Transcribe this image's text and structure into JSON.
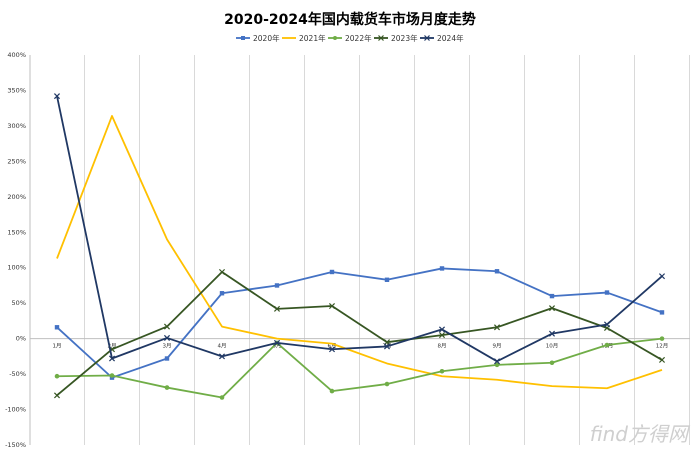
{
  "chart_data": {
    "type": "line",
    "title": "2020-2024年国内载货车市场月度走势",
    "categories": [
      "1月",
      "2月",
      "3月",
      "4月",
      "5月",
      "6月",
      "7月",
      "8月",
      "9月",
      "10月",
      "11月",
      "12月"
    ],
    "y_ticks": [
      "400%",
      "350%",
      "300%",
      "250%",
      "200%",
      "150%",
      "100%",
      "50%",
      "0%",
      "-50%",
      "-100%",
      "-150%"
    ],
    "ylim": [
      -150,
      400
    ],
    "y_unit": "%",
    "grid": "vertical",
    "legend_position": "top",
    "series": [
      {
        "name": "2020年",
        "color": "#4472C4",
        "marker": "square",
        "values": [
          16,
          -55,
          -28,
          64,
          75,
          94,
          83,
          99,
          95,
          60,
          65,
          37
        ]
      },
      {
        "name": "2021年",
        "color": "#FFC000",
        "marker": "none",
        "values": [
          113,
          314,
          140,
          17,
          0,
          -7,
          -35,
          -53,
          -58,
          -67,
          -70,
          -44
        ]
      },
      {
        "name": "2022年",
        "color": "#70AD47",
        "marker": "circle",
        "values": [
          -53,
          -52,
          -69,
          -83,
          -6,
          -74,
          -64,
          -46,
          -37,
          -34,
          -9,
          0
        ]
      },
      {
        "name": "2023年",
        "color": "#375623",
        "marker": "x",
        "values": [
          -80,
          -15,
          17,
          94,
          42,
          46,
          -5,
          5,
          16,
          43,
          15,
          -30
        ]
      },
      {
        "name": "2024年",
        "color": "#203864",
        "marker": "x",
        "values": [
          342,
          -28,
          1,
          -25,
          -6,
          -15,
          -11,
          13,
          -32,
          7,
          20,
          88
        ]
      }
    ]
  },
  "watermark": "find方得网"
}
